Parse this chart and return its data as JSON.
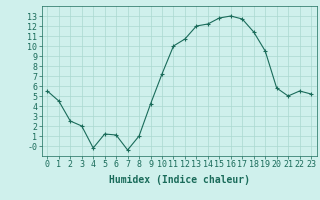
{
  "x": [
    0,
    1,
    2,
    3,
    4,
    5,
    6,
    7,
    8,
    9,
    10,
    11,
    12,
    13,
    14,
    15,
    16,
    17,
    18,
    19,
    20,
    21,
    22,
    23
  ],
  "y": [
    5.5,
    4.5,
    2.5,
    2.0,
    -0.2,
    1.2,
    1.1,
    -0.4,
    1.0,
    4.2,
    7.2,
    10.0,
    10.7,
    12.0,
    12.2,
    12.8,
    13.0,
    12.7,
    11.4,
    9.5,
    5.8,
    5.0,
    5.5,
    5.2
  ],
  "line_color": "#1a6b5a",
  "marker": "+",
  "marker_size": 3,
  "bg_color": "#cff0ec",
  "grid_color": "#aad8d0",
  "xlabel": "Humidex (Indice chaleur)",
  "xlabel_fontsize": 7,
  "tick_fontsize": 6,
  "xlim": [
    -0.5,
    23.5
  ],
  "ylim": [
    -1,
    14
  ],
  "yticks": [
    0,
    1,
    2,
    3,
    4,
    5,
    6,
    7,
    8,
    9,
    10,
    11,
    12,
    13
  ],
  "xticks": [
    0,
    1,
    2,
    3,
    4,
    5,
    6,
    7,
    8,
    9,
    10,
    11,
    12,
    13,
    14,
    15,
    16,
    17,
    18,
    19,
    20,
    21,
    22,
    23
  ],
  "tick_color": "#1a6b5a",
  "axis_color": "#1a6b5a",
  "spine_color": "#1a6b5a"
}
